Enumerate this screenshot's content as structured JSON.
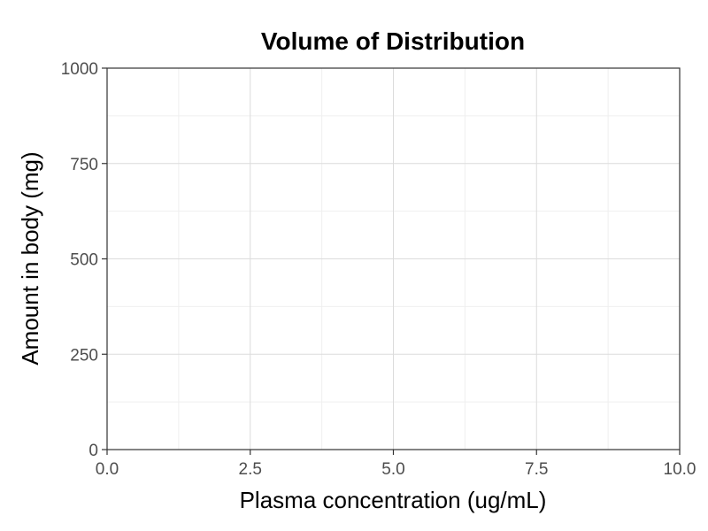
{
  "chart_data": {
    "type": "scatter",
    "title": "Volume of Distribution",
    "xlabel": "Plasma concentration (ug/mL)",
    "ylabel": "Amount in body (mg)",
    "xlim": [
      0,
      10
    ],
    "ylim": [
      0,
      1000
    ],
    "x_ticks": [
      0,
      2.5,
      5,
      7.5,
      10
    ],
    "x_tick_labels": [
      "0.0",
      "2.5",
      "5.0",
      "7.5",
      "10.0"
    ],
    "y_ticks": [
      0,
      250,
      500,
      750,
      1000
    ],
    "y_tick_labels": [
      "0",
      "250",
      "500",
      "750",
      "1000"
    ],
    "grid": true,
    "legend": "none",
    "series": []
  }
}
